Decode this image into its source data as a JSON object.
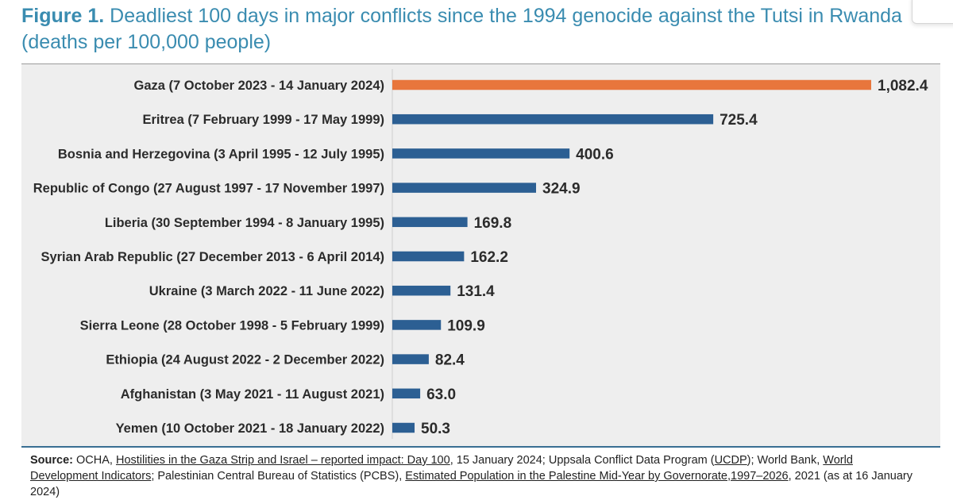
{
  "figure": {
    "label": "Figure 1.",
    "title": "Deadliest 100 days in major conflicts since the 1994 genocide against the Tutsi in Rwanda (deaths per 100,000 people)"
  },
  "colors": {
    "highlight": "#e8763c",
    "bar": "#2c5f93",
    "title": "#3a8cb0",
    "panel": "#eeeeee"
  },
  "chart_data": {
    "type": "bar",
    "orientation": "horizontal",
    "categories": [
      "Gaza (7 October 2023 - 14 January 2024)",
      "Eritrea (7 February 1999 - 17 May 1999)",
      "Bosnia and Herzegovina (3 April 1995 - 12 July 1995)",
      "Republic of Congo (27 August 1997 - 17 November 1997)",
      "Liberia (30 September 1994 - 8 January 1995)",
      "Syrian Arab Republic (27 December 2013 - 6 April 2014)",
      "Ukraine (3 March 2022 - 11 June 2022)",
      "Sierra Leone (28 October 1998 - 5 February 1999)",
      "Ethiopia (24 August 2022 - 2 December 2022)",
      "Afghanistan (3 May 2021 - 11 August 2021)",
      "Yemen (10 October 2021 - 18 January 2022)"
    ],
    "values": [
      1082.4,
      725.4,
      400.6,
      324.9,
      169.8,
      162.2,
      131.4,
      109.9,
      82.4,
      63.0,
      50.3
    ],
    "value_labels": [
      "1,082.4",
      "725.4",
      "400.6",
      "324.9",
      "169.8",
      "162.2",
      "131.4",
      "109.9",
      "82.4",
      "63.0",
      "50.3"
    ],
    "highlight_index": 0,
    "xlim": [
      0,
      1082.4
    ],
    "grid": false,
    "legend": "none"
  },
  "source": {
    "label": "Source:",
    "parts": [
      {
        "text": " OCHA, ",
        "u": false
      },
      {
        "text": "Hostilities in the Gaza Strip and Israel – reported impact: Day 100",
        "u": true
      },
      {
        "text": ", 15 January 2024; Uppsala Conflict Data Program (",
        "u": false
      },
      {
        "text": "UCDP",
        "u": true
      },
      {
        "text": "); World Bank, ",
        "u": false
      },
      {
        "text": "World Development Indicators",
        "u": true
      },
      {
        "text": "; Palestinian Central Bureau of Statistics (PCBS), ",
        "u": false
      },
      {
        "text": "Estimated Population in the Palestine Mid-Year by Governorate,1997–2026",
        "u": true
      },
      {
        "text": ", 2021 (as at 16 January 2024)",
        "u": false
      }
    ]
  }
}
